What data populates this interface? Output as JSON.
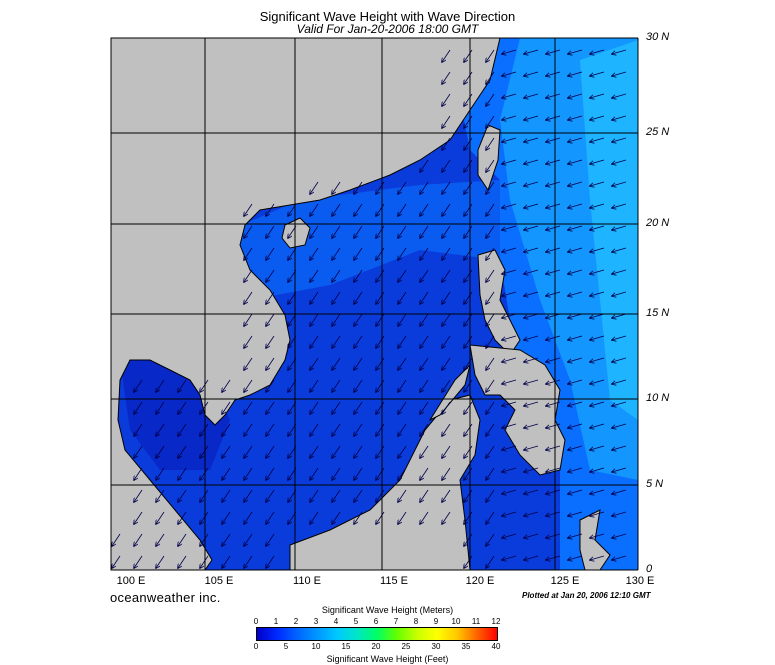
{
  "title": "Significant Wave Height with Wave Direction",
  "subtitle": "Valid For Jan-20-2006 18:00 GMT",
  "brand": "oceanweather inc.",
  "plotted": "Plotted at Jan 20, 2006 12:10 GMT",
  "lon_labels": [
    "100 E",
    "105 E",
    "110 E",
    "115 E",
    "120 E",
    "125 E",
    "130 E"
  ],
  "lat_labels": [
    "30 N",
    "25 N",
    "20 N",
    "15 N",
    "10 N",
    "5 N",
    "0"
  ],
  "colorbar": {
    "title_meters": "Significant Wave Height (Meters)",
    "title_feet": "Significant Wave Height (Feet)",
    "meter_ticks": [
      "0",
      "1",
      "2",
      "3",
      "4",
      "5",
      "6",
      "7",
      "8",
      "9",
      "10",
      "11",
      "12"
    ],
    "feet_ticks": [
      "0",
      "5",
      "10",
      "15",
      "20",
      "25",
      "30",
      "35",
      "40"
    ],
    "colors": [
      "#0000c8",
      "#0028ff",
      "#0064ff",
      "#0096ff",
      "#00c8ff",
      "#00e6c8",
      "#00ff64",
      "#64ff00",
      "#c8ff00",
      "#ffff00",
      "#ffc800",
      "#ff6400",
      "#ff0000"
    ]
  },
  "colors": {
    "land": "#c0c0c0",
    "ocean_calm": "#0a3cdc",
    "ocean_mid": "#0a6eff",
    "ocean_high": "#14a0ff",
    "grid": "#000000"
  }
}
